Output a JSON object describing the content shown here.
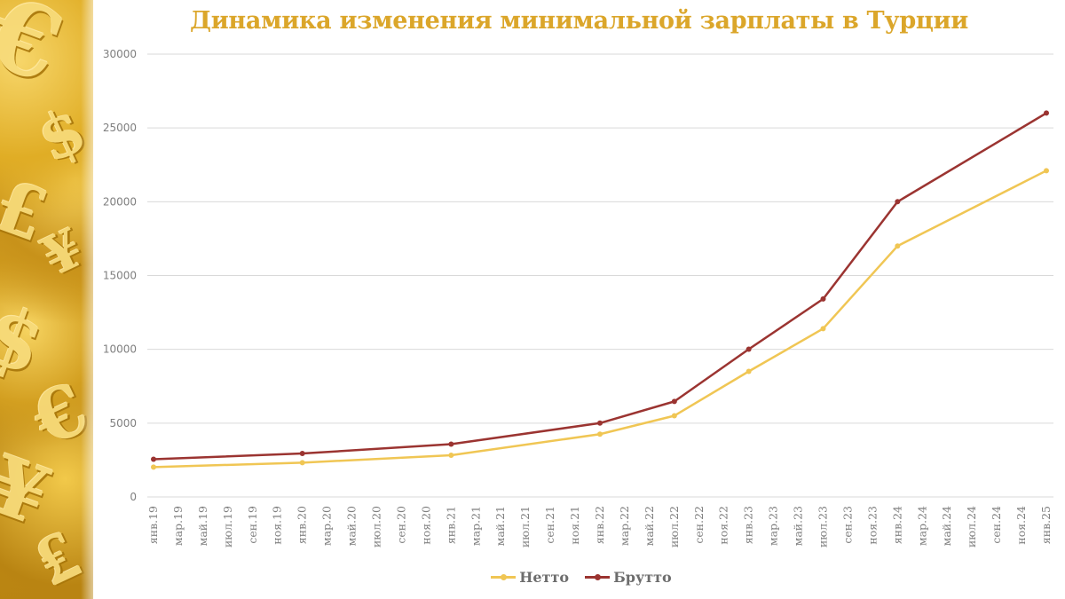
{
  "title": "Динамика изменения минимальной зарплаты в Турции",
  "legend": [
    {
      "label": "Нетто",
      "color": "#f0c654"
    },
    {
      "label": "Брутто",
      "color": "#9b3431"
    }
  ],
  "decoration": {
    "symbols": [
      "€",
      "$",
      "£",
      "¥",
      "$",
      "€",
      "¥",
      "₤"
    ]
  },
  "chart_data": {
    "type": "line",
    "title": "Динамика изменения минимальной зарплаты в Турции",
    "xlabel": "",
    "ylabel": "",
    "ylim": [
      0,
      30000
    ],
    "yticks": [
      0,
      5000,
      10000,
      15000,
      20000,
      25000,
      30000
    ],
    "grid": true,
    "legend_position": "bottom",
    "x_tick_labels": [
      "янв.19",
      "мар.19",
      "май.19",
      "июл.19",
      "сен.19",
      "ноя.19",
      "янв.20",
      "мар.20",
      "май.20",
      "июл.20",
      "сен.20",
      "ноя.20",
      "янв.21",
      "мар.21",
      "май.21",
      "июл.21",
      "сен.21",
      "ноя.21",
      "янв.22",
      "мар.22",
      "май.22",
      "июл.22",
      "сен.22",
      "ноя.22",
      "янв.23",
      "мар.23",
      "май.23",
      "июл.23",
      "сен.23",
      "ноя.23",
      "янв.24",
      "мар.24",
      "май.24",
      "июл.24",
      "сен.24",
      "ноя.24",
      "янв.25"
    ],
    "x": [
      "янв.19",
      "янв.20",
      "янв.21",
      "янв.22",
      "июл.22",
      "янв.23",
      "июл.23",
      "янв.24",
      "янв.25"
    ],
    "x_month_index": [
      0,
      12,
      24,
      36,
      42,
      48,
      54,
      60,
      72
    ],
    "series": [
      {
        "name": "Нетто",
        "color": "#f0c654",
        "values": [
          2021,
          2325,
          2826,
          4253,
          5500,
          8507,
          11402,
          17002,
          22105
        ]
      },
      {
        "name": "Брутто",
        "color": "#9b3431",
        "values": [
          2558,
          2943,
          3578,
          5004,
          6471,
          10008,
          13415,
          20003,
          26006
        ]
      }
    ]
  }
}
